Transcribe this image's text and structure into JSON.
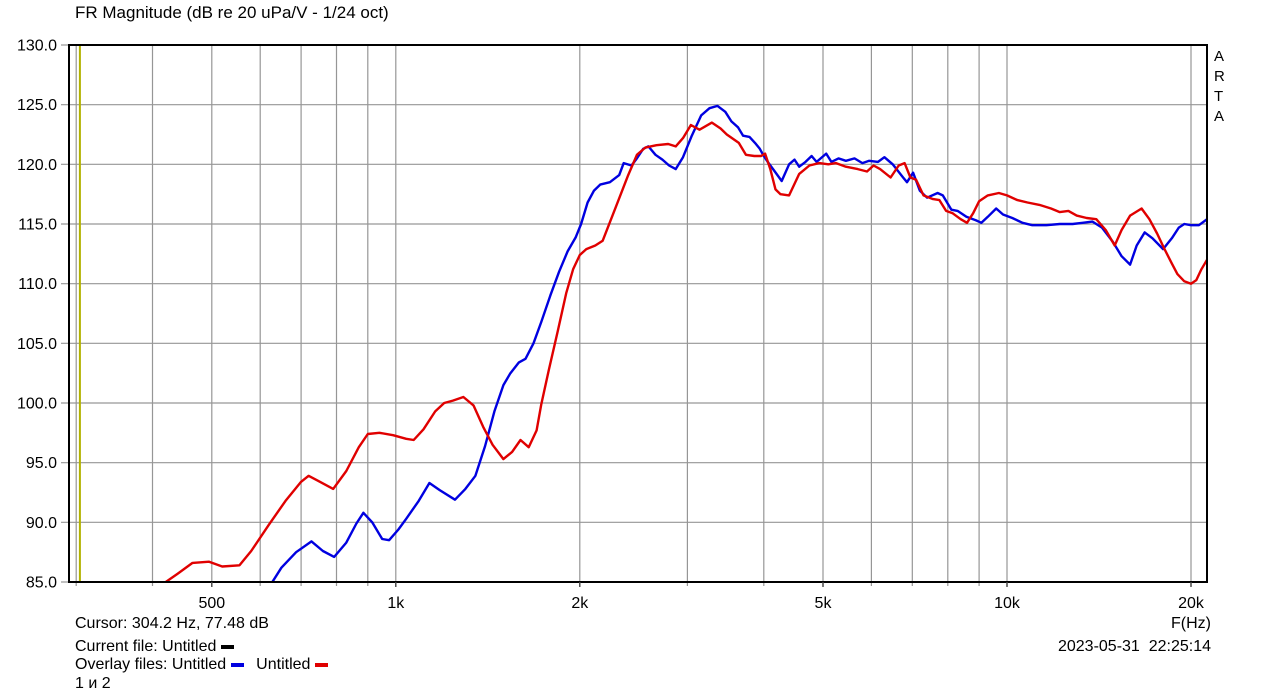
{
  "window": {
    "title": "FR Magnitude (dB re 20 uPa/V - 1/24 oct)",
    "watermark": "ARTA"
  },
  "statusbar": {
    "cursor_readout": "Cursor: 304.2 Hz, 77.48 dB",
    "current_file_label": "Current file: Untitled",
    "overlay_files_label": "Overlay files: Untitled",
    "overlay_second_name": "Untitled",
    "overlay_note": "1 и 2",
    "x_axis_unit": "F(Hz)",
    "timestamp": "2023-05-31  22:25:14"
  },
  "colors": {
    "curve_overlay1": "#0000e0",
    "curve_overlay2": "#e00000",
    "current_file_marker": "#000000",
    "grid": "#969696",
    "border": "#000000",
    "cursor_line": "#b3b300",
    "text": "#000000"
  },
  "chart_data": {
    "type": "line",
    "title": "FR Magnitude (dB re 20 uPa/V - 1/24 oct)",
    "x_scale": "log",
    "xlabel": "F(Hz)",
    "ylabel": "dB re 20 uPa/V",
    "xlim": [
      292,
      21240
    ],
    "ylim": [
      85,
      130
    ],
    "grid": true,
    "cursor_hz": 304.2,
    "cursor_db": 77.48,
    "grid_freqs": [
      300,
      400,
      500,
      600,
      700,
      800,
      900,
      1000,
      2000,
      3000,
      4000,
      5000,
      6000,
      7000,
      8000,
      9000,
      10000,
      20000
    ],
    "x_ticks": [
      {
        "f": 500,
        "label": "500"
      },
      {
        "f": 1000,
        "label": "1k"
      },
      {
        "f": 2000,
        "label": "2k"
      },
      {
        "f": 5000,
        "label": "5k"
      },
      {
        "f": 10000,
        "label": "10k"
      },
      {
        "f": 20000,
        "label": "20k"
      }
    ],
    "y_ticks": [
      {
        "db": 130,
        "label": "130.0"
      },
      {
        "db": 125,
        "label": "125.0"
      },
      {
        "db": 120,
        "label": "120.0"
      },
      {
        "db": 115,
        "label": "115.0"
      },
      {
        "db": 110,
        "label": "110.0"
      },
      {
        "db": 105,
        "label": "105.0"
      },
      {
        "db": 100,
        "label": "100.0"
      },
      {
        "db": 95,
        "label": "95.0"
      },
      {
        "db": 90,
        "label": "90.0"
      },
      {
        "db": 85,
        "label": "85.0"
      }
    ],
    "series": [
      {
        "name": "Untitled (overlay 1)",
        "color": "#0000e0",
        "points": [
          [
            621,
            84.6
          ],
          [
            650,
            86.2
          ],
          [
            687,
            87.5
          ],
          [
            728,
            88.4
          ],
          [
            760,
            87.6
          ],
          [
            793,
            87.1
          ],
          [
            830,
            88.3
          ],
          [
            862,
            89.9
          ],
          [
            885,
            90.8
          ],
          [
            915,
            90.0
          ],
          [
            950,
            88.6
          ],
          [
            975,
            88.5
          ],
          [
            1010,
            89.4
          ],
          [
            1040,
            90.3
          ],
          [
            1090,
            91.8
          ],
          [
            1135,
            93.3
          ],
          [
            1180,
            92.7
          ],
          [
            1250,
            91.9
          ],
          [
            1300,
            92.8
          ],
          [
            1350,
            93.9
          ],
          [
            1400,
            96.4
          ],
          [
            1450,
            99.3
          ],
          [
            1500,
            101.5
          ],
          [
            1540,
            102.5
          ],
          [
            1590,
            103.4
          ],
          [
            1630,
            103.7
          ],
          [
            1680,
            105.0
          ],
          [
            1730,
            106.8
          ],
          [
            1790,
            109.0
          ],
          [
            1850,
            111.0
          ],
          [
            1910,
            112.7
          ],
          [
            1970,
            113.9
          ],
          [
            2010,
            115.0
          ],
          [
            2060,
            116.8
          ],
          [
            2110,
            117.8
          ],
          [
            2160,
            118.3
          ],
          [
            2240,
            118.5
          ],
          [
            2320,
            119.1
          ],
          [
            2360,
            120.1
          ],
          [
            2430,
            119.9
          ],
          [
            2480,
            120.5
          ],
          [
            2540,
            121.3
          ],
          [
            2590,
            121.5
          ],
          [
            2660,
            120.8
          ],
          [
            2730,
            120.4
          ],
          [
            2800,
            119.9
          ],
          [
            2870,
            119.6
          ],
          [
            2950,
            120.6
          ],
          [
            3050,
            122.4
          ],
          [
            3160,
            124.1
          ],
          [
            3260,
            124.7
          ],
          [
            3360,
            124.9
          ],
          [
            3460,
            124.4
          ],
          [
            3540,
            123.6
          ],
          [
            3630,
            123.1
          ],
          [
            3700,
            122.4
          ],
          [
            3790,
            122.3
          ],
          [
            3870,
            121.8
          ],
          [
            3940,
            121.3
          ],
          [
            4000,
            120.7
          ],
          [
            4060,
            120.2
          ],
          [
            4170,
            119.4
          ],
          [
            4280,
            118.6
          ],
          [
            4400,
            120.0
          ],
          [
            4490,
            120.4
          ],
          [
            4570,
            119.8
          ],
          [
            4680,
            120.2
          ],
          [
            4790,
            120.7
          ],
          [
            4880,
            120.2
          ],
          [
            5060,
            120.9
          ],
          [
            5160,
            120.2
          ],
          [
            5300,
            120.5
          ],
          [
            5450,
            120.3
          ],
          [
            5630,
            120.5
          ],
          [
            5800,
            120.1
          ],
          [
            5950,
            120.3
          ],
          [
            6150,
            120.2
          ],
          [
            6300,
            120.6
          ],
          [
            6500,
            120.0
          ],
          [
            6760,
            118.9
          ],
          [
            6860,
            118.5
          ],
          [
            7020,
            119.3
          ],
          [
            7200,
            117.8
          ],
          [
            7400,
            117.2
          ],
          [
            7700,
            117.6
          ],
          [
            7850,
            117.4
          ],
          [
            8110,
            116.2
          ],
          [
            8300,
            116.1
          ],
          [
            8580,
            115.6
          ],
          [
            8900,
            115.3
          ],
          [
            9080,
            115.1
          ],
          [
            9300,
            115.6
          ],
          [
            9600,
            116.3
          ],
          [
            9850,
            115.8
          ],
          [
            10200,
            115.5
          ],
          [
            10600,
            115.1
          ],
          [
            11000,
            114.9
          ],
          [
            11600,
            114.9
          ],
          [
            12200,
            115.0
          ],
          [
            12800,
            115.0
          ],
          [
            13300,
            115.1
          ],
          [
            13800,
            115.2
          ],
          [
            14300,
            114.7
          ],
          [
            14900,
            113.5
          ],
          [
            15400,
            112.3
          ],
          [
            15900,
            111.6
          ],
          [
            16300,
            113.2
          ],
          [
            16800,
            114.3
          ],
          [
            17300,
            113.8
          ],
          [
            18000,
            112.9
          ],
          [
            18600,
            113.8
          ],
          [
            19100,
            114.7
          ],
          [
            19500,
            115.0
          ],
          [
            20000,
            114.9
          ],
          [
            20600,
            114.9
          ],
          [
            21240,
            115.4
          ]
        ]
      },
      {
        "name": "Untitled (overlay 2)",
        "color": "#e00000",
        "points": [
          [
            415,
            84.8
          ],
          [
            440,
            85.7
          ],
          [
            465,
            86.6
          ],
          [
            495,
            86.7
          ],
          [
            520,
            86.3
          ],
          [
            555,
            86.4
          ],
          [
            580,
            87.6
          ],
          [
            620,
            89.8
          ],
          [
            660,
            91.8
          ],
          [
            700,
            93.4
          ],
          [
            720,
            93.9
          ],
          [
            745,
            93.5
          ],
          [
            790,
            92.8
          ],
          [
            830,
            94.3
          ],
          [
            870,
            96.3
          ],
          [
            900,
            97.4
          ],
          [
            940,
            97.5
          ],
          [
            990,
            97.3
          ],
          [
            1040,
            97.0
          ],
          [
            1070,
            96.9
          ],
          [
            1110,
            97.8
          ],
          [
            1160,
            99.3
          ],
          [
            1200,
            100.0
          ],
          [
            1240,
            100.2
          ],
          [
            1290,
            100.5
          ],
          [
            1340,
            99.8
          ],
          [
            1390,
            98.0
          ],
          [
            1440,
            96.5
          ],
          [
            1500,
            95.3
          ],
          [
            1550,
            95.9
          ],
          [
            1600,
            96.9
          ],
          [
            1650,
            96.3
          ],
          [
            1700,
            97.7
          ],
          [
            1730,
            99.9
          ],
          [
            1780,
            102.8
          ],
          [
            1840,
            106.0
          ],
          [
            1900,
            109.2
          ],
          [
            1950,
            111.2
          ],
          [
            2000,
            112.4
          ],
          [
            2050,
            112.9
          ],
          [
            2120,
            113.2
          ],
          [
            2180,
            113.6
          ],
          [
            2290,
            116.4
          ],
          [
            2400,
            119.1
          ],
          [
            2480,
            120.8
          ],
          [
            2560,
            121.4
          ],
          [
            2670,
            121.6
          ],
          [
            2790,
            121.7
          ],
          [
            2870,
            121.5
          ],
          [
            2950,
            122.2
          ],
          [
            3040,
            123.3
          ],
          [
            3140,
            122.9
          ],
          [
            3290,
            123.5
          ],
          [
            3400,
            123.0
          ],
          [
            3480,
            122.5
          ],
          [
            3640,
            121.8
          ],
          [
            3740,
            120.8
          ],
          [
            3860,
            120.7
          ],
          [
            3960,
            120.7
          ],
          [
            4020,
            120.9
          ],
          [
            4100,
            119.6
          ],
          [
            4180,
            117.9
          ],
          [
            4260,
            117.5
          ],
          [
            4400,
            117.4
          ],
          [
            4570,
            119.2
          ],
          [
            4750,
            119.9
          ],
          [
            4930,
            120.1
          ],
          [
            5100,
            120.0
          ],
          [
            5250,
            120.1
          ],
          [
            5450,
            119.8
          ],
          [
            5700,
            119.6
          ],
          [
            5900,
            119.4
          ],
          [
            6050,
            119.9
          ],
          [
            6200,
            119.6
          ],
          [
            6450,
            118.9
          ],
          [
            6650,
            119.9
          ],
          [
            6800,
            120.1
          ],
          [
            6950,
            118.9
          ],
          [
            7100,
            118.7
          ],
          [
            7300,
            117.4
          ],
          [
            7550,
            117.1
          ],
          [
            7750,
            117.0
          ],
          [
            7950,
            116.1
          ],
          [
            8150,
            115.9
          ],
          [
            8400,
            115.4
          ],
          [
            8600,
            115.1
          ],
          [
            8800,
            115.9
          ],
          [
            9000,
            116.9
          ],
          [
            9300,
            117.4
          ],
          [
            9700,
            117.6
          ],
          [
            10000,
            117.4
          ],
          [
            10400,
            117.0
          ],
          [
            10800,
            116.8
          ],
          [
            11300,
            116.6
          ],
          [
            11800,
            116.3
          ],
          [
            12200,
            116.0
          ],
          [
            12600,
            116.1
          ],
          [
            13000,
            115.7
          ],
          [
            13500,
            115.5
          ],
          [
            14000,
            115.4
          ],
          [
            14500,
            114.5
          ],
          [
            15000,
            113.2
          ],
          [
            15400,
            114.5
          ],
          [
            15900,
            115.7
          ],
          [
            16600,
            116.3
          ],
          [
            17100,
            115.4
          ],
          [
            17600,
            114.2
          ],
          [
            18100,
            112.9
          ],
          [
            18600,
            111.7
          ],
          [
            19000,
            110.8
          ],
          [
            19500,
            110.2
          ],
          [
            20000,
            110.0
          ],
          [
            20400,
            110.3
          ],
          [
            20800,
            111.2
          ],
          [
            21240,
            112.0
          ]
        ]
      }
    ]
  }
}
